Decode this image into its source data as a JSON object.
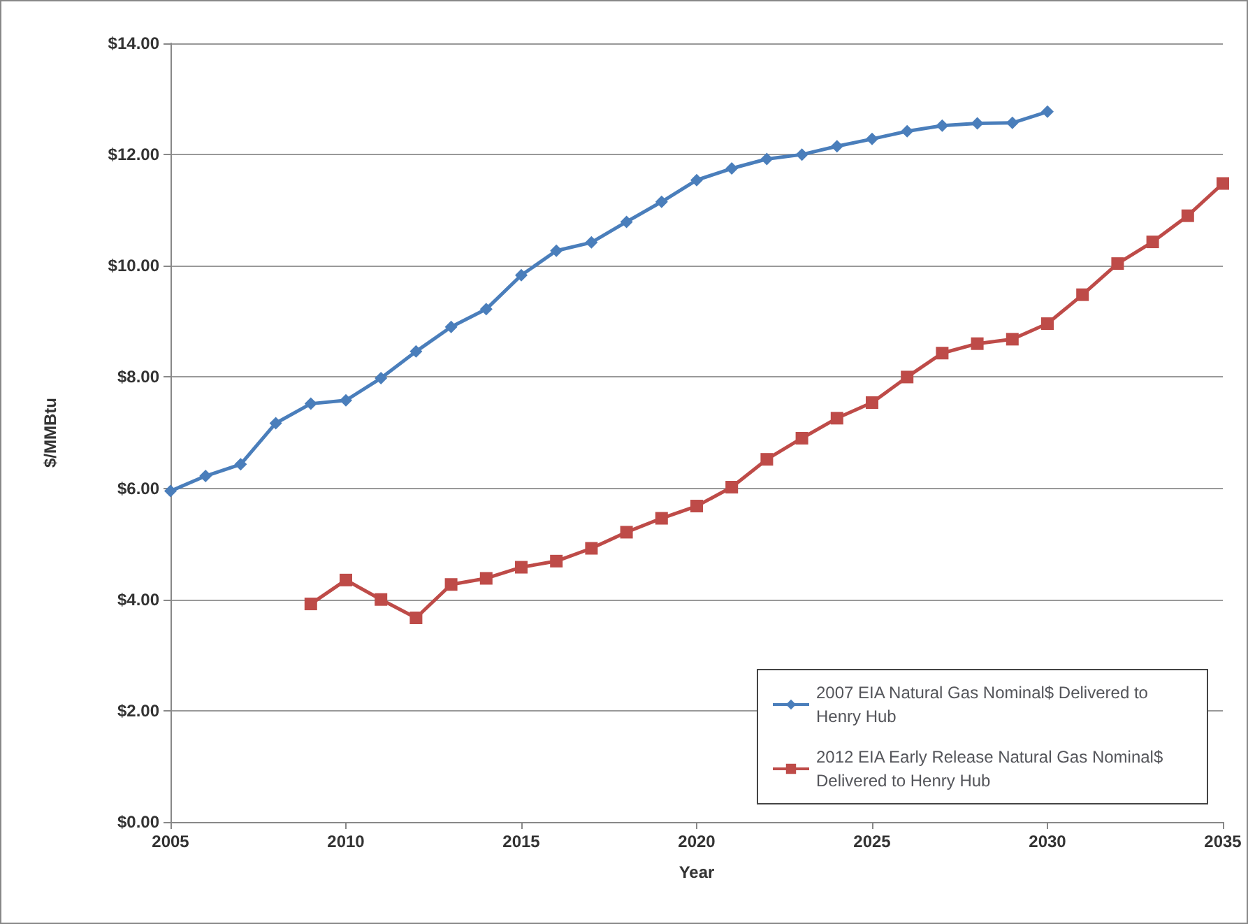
{
  "chart_data": {
    "type": "line",
    "xlabel": "Year",
    "ylabel": "$/MMBtu",
    "xlim": [
      2005,
      2035
    ],
    "xticks": [
      2005,
      2010,
      2015,
      2020,
      2025,
      2030,
      2035
    ],
    "ylim": [
      0,
      14
    ],
    "yticks": [
      {
        "value": 0,
        "label": "$0.00"
      },
      {
        "value": 2,
        "label": "$2.00"
      },
      {
        "value": 4,
        "label": "$4.00"
      },
      {
        "value": 6,
        "label": "$6.00"
      },
      {
        "value": 8,
        "label": "$8.00"
      },
      {
        "value": 10,
        "label": "$10.00"
      },
      {
        "value": 12,
        "label": "$12.00"
      },
      {
        "value": 14,
        "label": "$14.00"
      }
    ],
    "grid": "y",
    "legend": "bottom right",
    "series": [
      {
        "name": "2007 EIA Natural Gas Nominal$ Delivered to Henry Hub",
        "color": "#4a7ebb",
        "marker": "diamond",
        "x": [
          2005,
          2006,
          2007,
          2008,
          2009,
          2010,
          2011,
          2012,
          2013,
          2014,
          2015,
          2016,
          2017,
          2018,
          2019,
          2020,
          2021,
          2022,
          2023,
          2024,
          2025,
          2026,
          2027,
          2028,
          2029,
          2030
        ],
        "values": [
          5.95,
          6.22,
          6.43,
          7.17,
          7.52,
          7.58,
          7.98,
          8.46,
          8.9,
          9.22,
          9.83,
          10.27,
          10.42,
          10.79,
          11.15,
          11.54,
          11.75,
          11.92,
          12.0,
          12.15,
          12.28,
          12.42,
          12.52,
          12.56,
          12.57,
          12.77
        ]
      },
      {
        "name": "2012 EIA Early Release Natural Gas Nominal$ Delivered to Henry Hub",
        "color": "#be4b48",
        "marker": "square",
        "x": [
          2009,
          2010,
          2011,
          2012,
          2013,
          2014,
          2015,
          2016,
          2017,
          2018,
          2019,
          2020,
          2021,
          2022,
          2023,
          2024,
          2025,
          2026,
          2027,
          2028,
          2029,
          2030,
          2031,
          2032,
          2033,
          2034,
          2035
        ],
        "values": [
          3.92,
          4.35,
          4.0,
          3.67,
          4.27,
          4.38,
          4.58,
          4.69,
          4.92,
          5.21,
          5.46,
          5.68,
          6.02,
          6.52,
          6.9,
          7.26,
          7.54,
          8.0,
          8.43,
          8.6,
          8.68,
          8.96,
          9.48,
          10.04,
          10.43,
          10.9,
          11.48
        ]
      }
    ]
  }
}
